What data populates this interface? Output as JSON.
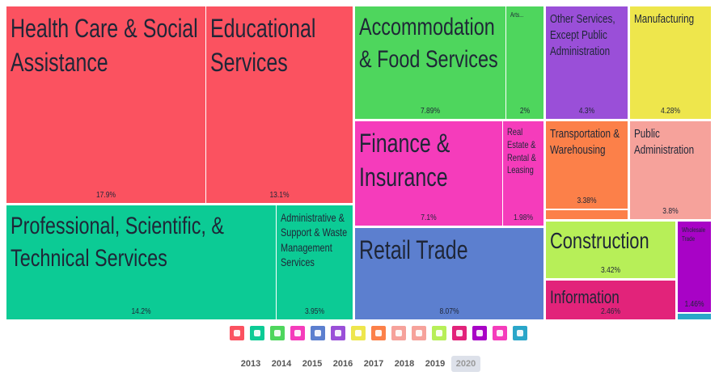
{
  "chart_data": {
    "type": "treemap",
    "categories": [
      "Health Care & Social Assistance",
      "Educational Services",
      "Professional, Scientific, & Technical Services",
      "Administrative & Support & Waste Management Services",
      "Accommodation & Food Services",
      "Arts...",
      "Finance & Insurance",
      "Real Estate & Rental & Leasing",
      "Retail Trade",
      "Other Services, Except Public Administration",
      "Manufacturing",
      "Transportation & Warehousing",
      "Public Administration",
      "Construction",
      "Information",
      "Wholesale Trade"
    ],
    "values": [
      17.9,
      13.1,
      14.2,
      3.95,
      7.89,
      2,
      7.1,
      1.98,
      8.07,
      4.3,
      4.28,
      3.38,
      3.8,
      3.42,
      2.46,
      1.46
    ],
    "value_labels": [
      "17.9%",
      "13.1%",
      "14.2%",
      "3.95%",
      "7.89%",
      "2%",
      "7.1%",
      "1.98%",
      "8.07%",
      "4.3%",
      "4.28%",
      "3.38%",
      "3.8%",
      "3.42%",
      "2.46%",
      "1.46%"
    ],
    "colors": [
      "#fb5260",
      "#fb5260",
      "#0ccb95",
      "#0ccb95",
      "#4ed65d",
      "#4ed65d",
      "#f53cbb",
      "#f53cbb",
      "#5c7fcf",
      "#9a4fd8",
      "#eee64c",
      "#fc8049",
      "#f6a29b",
      "#b7ef58",
      "#e2237a",
      "#a803c6"
    ]
  },
  "years": [
    "2013",
    "2014",
    "2015",
    "2016",
    "2017",
    "2018",
    "2019",
    "2020"
  ],
  "selected_year": "2020"
}
